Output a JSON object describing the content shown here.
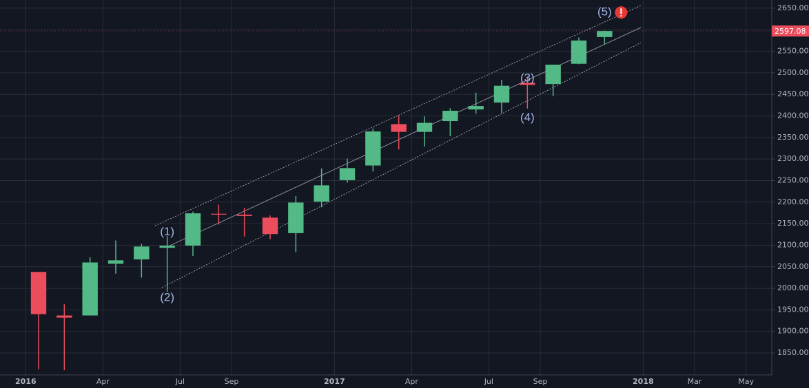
{
  "chart_data": {
    "type": "candlestick",
    "x": [
      "2016-01",
      "2016-02",
      "2016-03",
      "2016-04",
      "2016-05",
      "2016-06",
      "2016-07",
      "2016-08",
      "2016-09",
      "2016-10",
      "2016-11",
      "2016-12",
      "2017-01",
      "2017-02",
      "2017-03",
      "2017-04",
      "2017-05",
      "2017-06",
      "2017-07",
      "2017-08",
      "2017-09",
      "2017-10",
      "2017-11"
    ],
    "open": [
      2038,
      1937,
      1937,
      2057,
      2067,
      2094,
      2099,
      2173,
      2171,
      2164,
      2128,
      2201,
      2251,
      2285,
      2381,
      2363,
      2388,
      2415,
      2431,
      2477,
      2474,
      2521,
      2583
    ],
    "high": [
      2038,
      1963,
      2072,
      2111,
      2103,
      2121,
      2178,
      2194,
      2187,
      2169,
      2214,
      2278,
      2301,
      2371,
      2401,
      2399,
      2418,
      2454,
      2484,
      2491,
      2519,
      2582,
      2598
    ],
    "low": [
      1812,
      1810,
      1937,
      2034,
      2025,
      1992,
      2075,
      2148,
      2120,
      2114,
      2084,
      2188,
      2245,
      2271,
      2322,
      2329,
      2353,
      2405,
      2407,
      2417,
      2446,
      2520,
      2566
    ],
    "close": [
      1940,
      1932,
      2060,
      2065,
      2097,
      2099,
      2174,
      2171,
      2168,
      2126,
      2199,
      2239,
      2279,
      2364,
      2363,
      2384,
      2412,
      2423,
      2470,
      2472,
      2519,
      2575,
      2597
    ],
    "up_color": "#53b987",
    "down_color": "#eb4d5c",
    "last_price": 2597.08,
    "xlim": [
      "2015-12",
      "2018-06"
    ],
    "xticks": [
      {
        "value": "2016-01",
        "label": "2016"
      },
      {
        "value": "2016-04",
        "label": "Apr"
      },
      {
        "value": "2016-07",
        "label": "Jul"
      },
      {
        "value": "2016-09",
        "label": "Sep"
      },
      {
        "value": "2017-01",
        "label": "2017"
      },
      {
        "value": "2017-04",
        "label": "Apr"
      },
      {
        "value": "2017-07",
        "label": "Jul"
      },
      {
        "value": "2017-09",
        "label": "Sep"
      },
      {
        "value": "2018-01",
        "label": "2018"
      },
      {
        "value": "2018-03",
        "label": "Mar"
      },
      {
        "value": "2018-05",
        "label": "May"
      }
    ],
    "ylim": [
      1799,
      2669
    ],
    "yticks": [
      {
        "value": 1850,
        "label": "1850.00"
      },
      {
        "value": 1900,
        "label": "1900.00"
      },
      {
        "value": 1950,
        "label": "1950.00"
      },
      {
        "value": 2000,
        "label": "2000.00"
      },
      {
        "value": 2050,
        "label": "2050.00"
      },
      {
        "value": 2100,
        "label": "2100.00"
      },
      {
        "value": 2150,
        "label": "2150.00"
      },
      {
        "value": 2200,
        "label": "2200.00"
      },
      {
        "value": 2250,
        "label": "2250.00"
      },
      {
        "value": 2300,
        "label": "2300.00"
      },
      {
        "value": 2350,
        "label": "2350.00"
      },
      {
        "value": 2400,
        "label": "2400.00"
      },
      {
        "value": 2450,
        "label": "2450.00"
      },
      {
        "value": 2500,
        "label": "2500.00"
      },
      {
        "value": 2550,
        "label": "2550.00"
      },
      {
        "value": 2600,
        "label": "2600.00"
      },
      {
        "value": 2650,
        "label": "2650.00"
      }
    ],
    "grid": true,
    "annotations": [
      {
        "text": "(1)",
        "x": "2016-06",
        "y": 2130
      },
      {
        "text": "(2)",
        "x": "2016-06",
        "y": 1978
      },
      {
        "text": "(3)",
        "x": "2017-08",
        "y": 2487
      },
      {
        "text": "(4)",
        "x": "2017-08",
        "y": 2395
      },
      {
        "text": "(5)",
        "x": "2017-11",
        "y": 2640
      }
    ]
  }
}
